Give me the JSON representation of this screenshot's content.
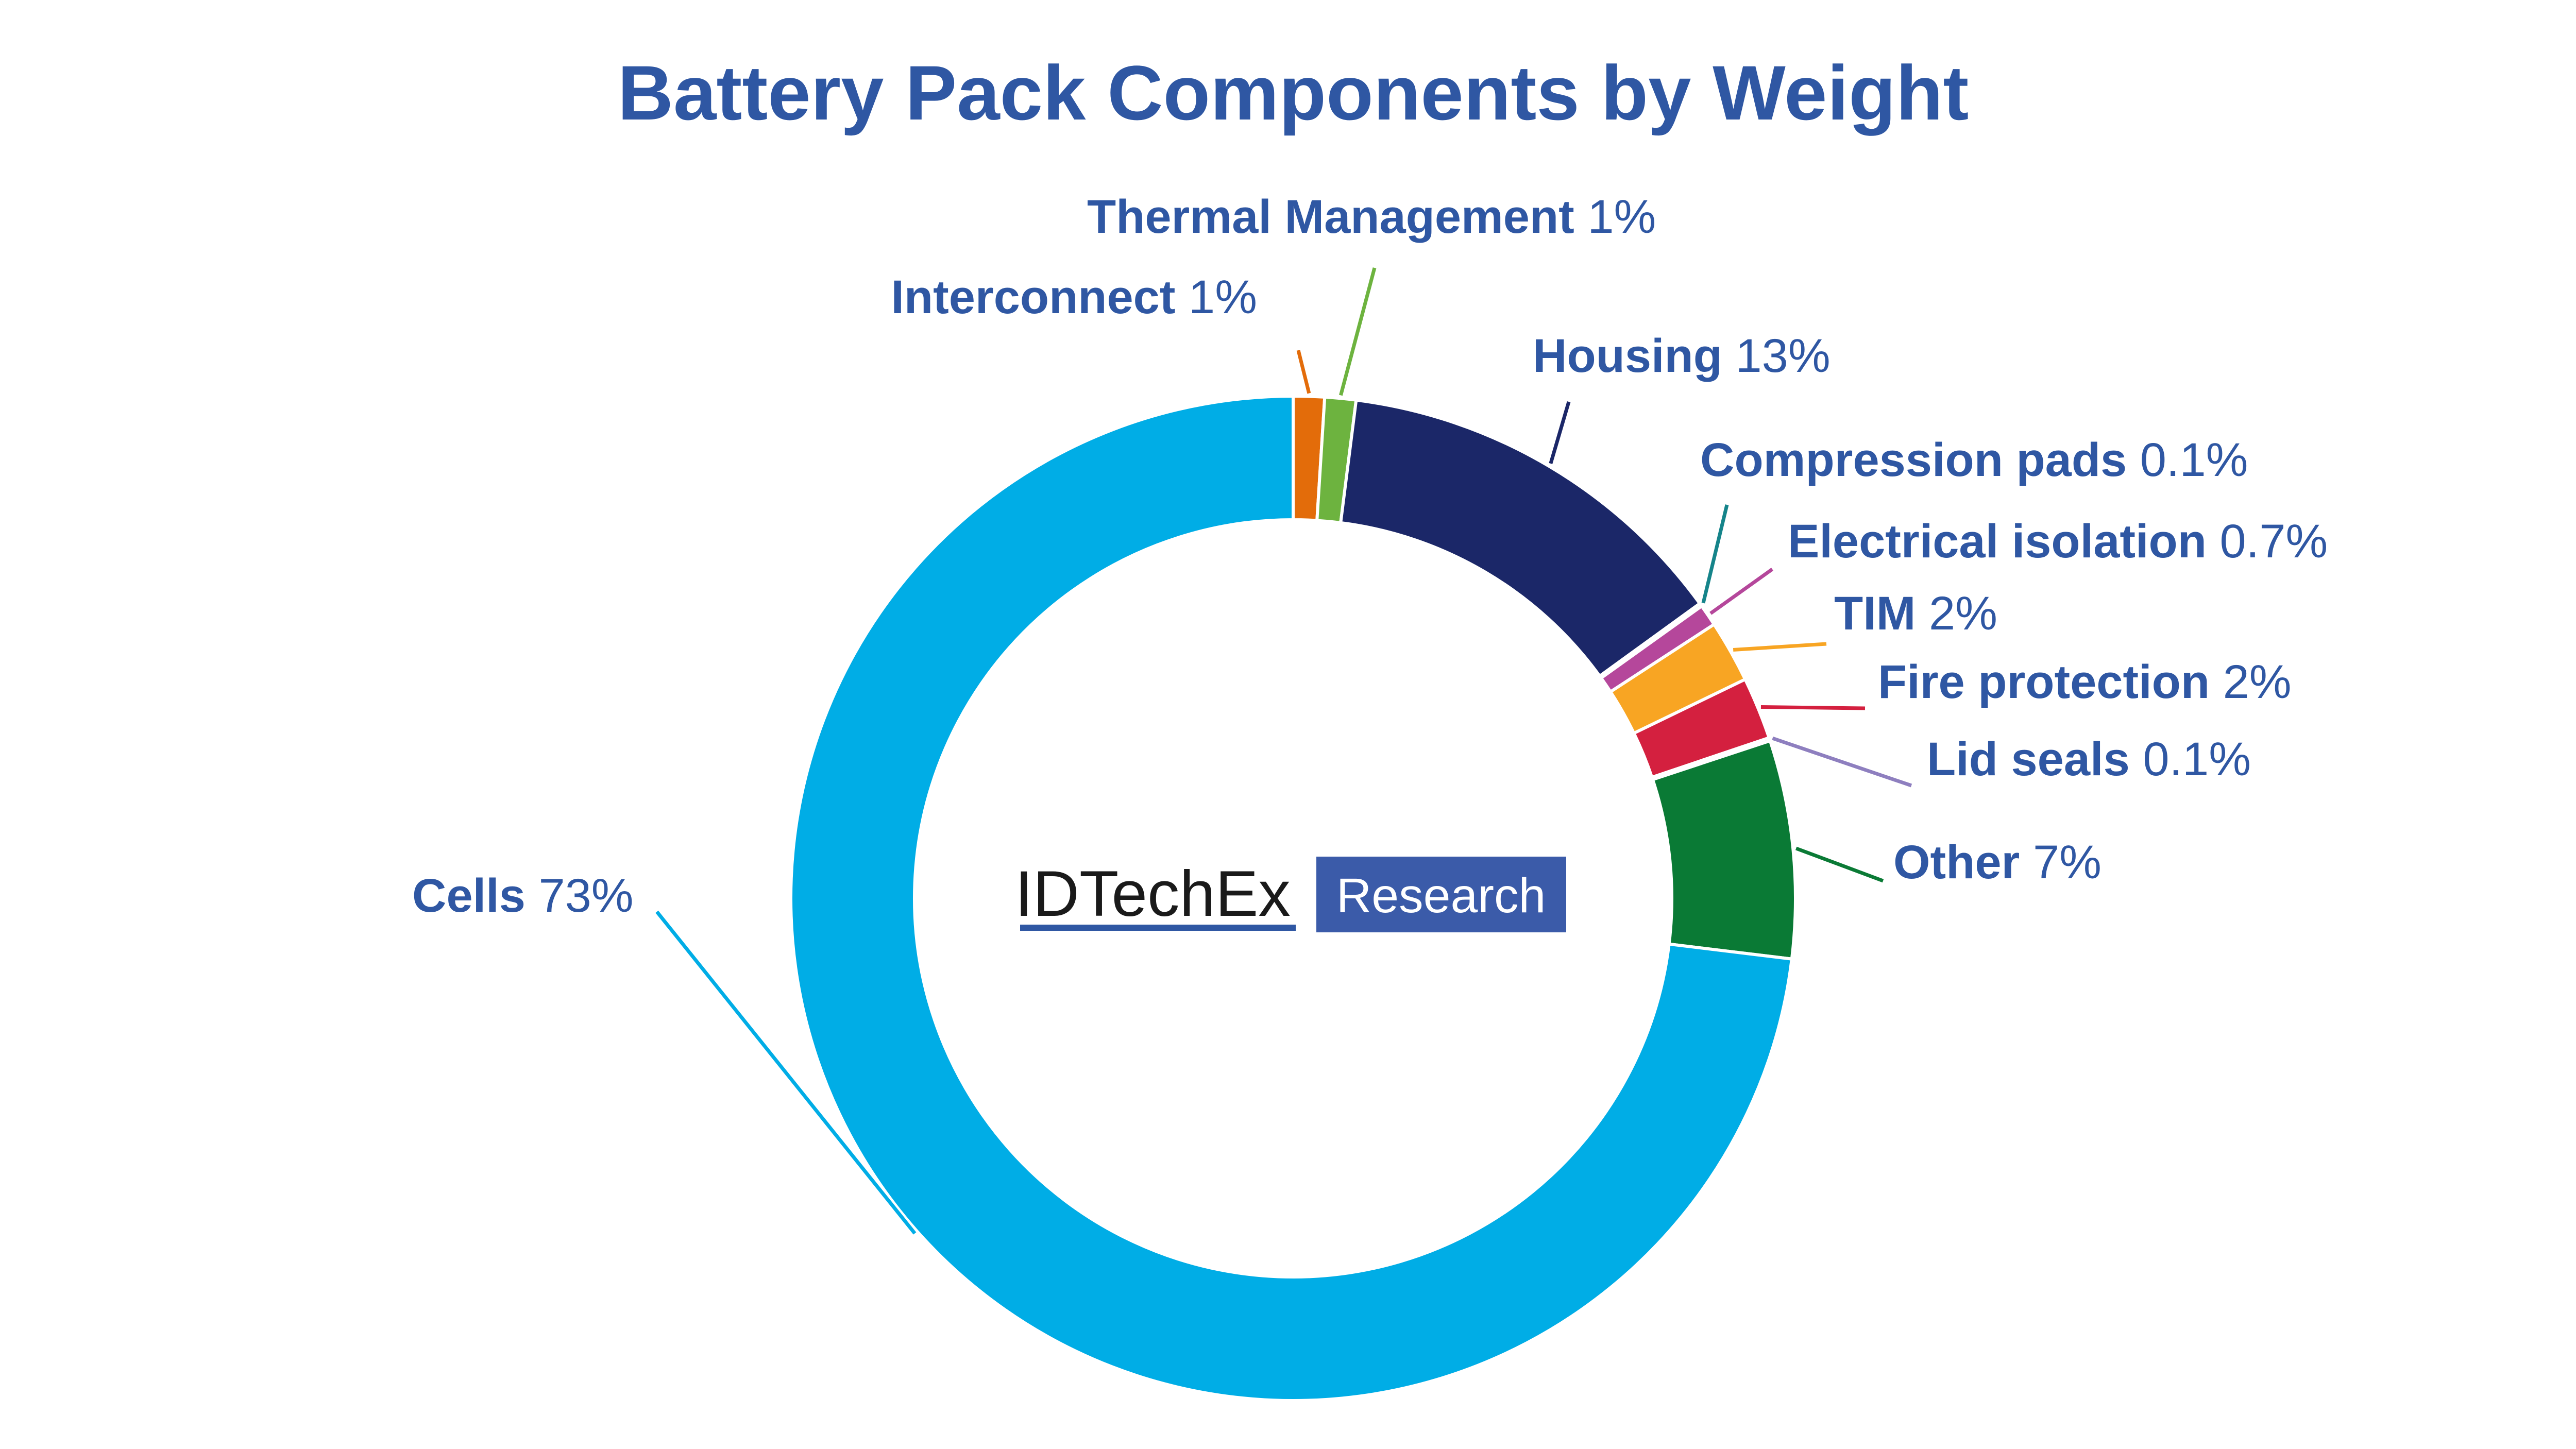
{
  "chart_data": {
    "type": "pie",
    "style": "donut",
    "title": "Battery Pack Components by Weight",
    "slices": [
      {
        "label": "Interconnect",
        "value": 1,
        "pct_text": "1%",
        "color": "#e36c0a"
      },
      {
        "label": "Thermal Management",
        "value": 1,
        "pct_text": "1%",
        "color": "#6db33f"
      },
      {
        "label": "Housing",
        "value": 13,
        "pct_text": "13%",
        "color": "#1b2768"
      },
      {
        "label": "Compression pads",
        "value": 0.1,
        "pct_text": "0.1%",
        "color": "#15848a"
      },
      {
        "label": "Electrical isolation",
        "value": 0.7,
        "pct_text": "0.7%",
        "color": "#b5479b"
      },
      {
        "label": "TIM",
        "value": 2,
        "pct_text": "2%",
        "color": "#f8a523"
      },
      {
        "label": "Fire protection",
        "value": 2,
        "pct_text": "2%",
        "color": "#d4203f"
      },
      {
        "label": "Lid seals",
        "value": 0.1,
        "pct_text": "0.1%",
        "color": "#8e7fbf"
      },
      {
        "label": "Other",
        "value": 7,
        "pct_text": "7%",
        "color": "#0a7a35"
      },
      {
        "label": "Cells",
        "value": 73,
        "pct_text": "73%",
        "color": "#00ade6"
      }
    ]
  },
  "logo": {
    "brand": "IDTechEx",
    "badge": "Research",
    "brand_color": "#1a1a1a",
    "badge_color": "#3b5ba9"
  }
}
